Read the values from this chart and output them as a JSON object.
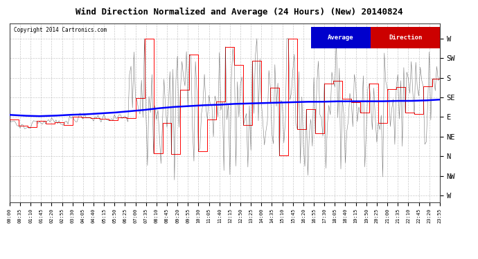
{
  "title": "Wind Direction Normalized and Average (24 Hours) (New) 20140824",
  "copyright": "Copyright 2014 Cartronics.com",
  "legend_avg": "Average",
  "legend_dir": "Direction",
  "bg_color": "#ffffff",
  "grid_color": "#bbbbbb",
  "ytick_labels_right": [
    "W",
    "SW",
    "S",
    "SE",
    "E",
    "NE",
    "N",
    "NW",
    "W"
  ],
  "ytick_values": [
    360,
    315,
    270,
    225,
    180,
    135,
    90,
    45,
    0
  ],
  "ylim": [
    -15,
    395
  ],
  "direction_color": "#ff0000",
  "average_color": "#0000ff",
  "n_points": 288,
  "xtick_labels": [
    "00:00",
    "00:35",
    "01:10",
    "01:45",
    "02:20",
    "02:55",
    "03:30",
    "04:05",
    "04:40",
    "05:15",
    "05:50",
    "06:25",
    "07:00",
    "07:35",
    "08:10",
    "08:45",
    "09:20",
    "09:55",
    "10:30",
    "11:05",
    "11:40",
    "12:15",
    "12:50",
    "13:25",
    "14:00",
    "14:35",
    "15:10",
    "15:45",
    "16:20",
    "16:55",
    "17:30",
    "18:05",
    "18:40",
    "19:15",
    "19:50",
    "20:25",
    "21:00",
    "21:35",
    "22:10",
    "22:45",
    "23:20",
    "23:55"
  ]
}
